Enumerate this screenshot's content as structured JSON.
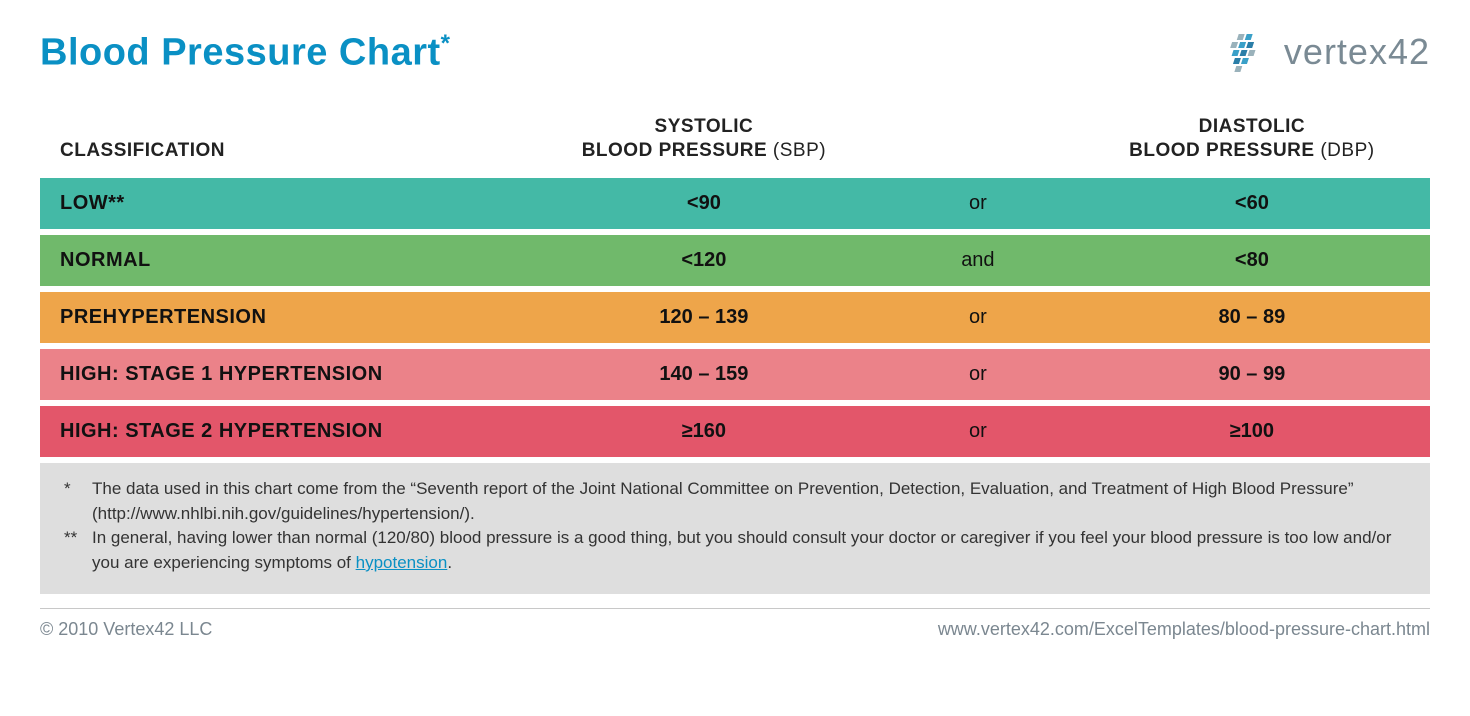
{
  "title": {
    "text": "Blood Pressure Chart",
    "asterisk": "*",
    "color": "#0a90c4"
  },
  "logo": {
    "text": "vertex42",
    "colors": {
      "accent1": "#3aa0c8",
      "accent2": "#2a7ea8",
      "accent3": "#9ab2bb",
      "text": "#7a8a94"
    }
  },
  "table": {
    "columns": {
      "classification": "CLASSIFICATION",
      "sbp_line1": "SYSTOLIC",
      "sbp_line2_bold": "BLOOD PRESSURE",
      "sbp_line2_light": " (SBP)",
      "dbp_line1": "DIASTOLIC",
      "dbp_line2_bold": "BLOOD PRESSURE",
      "dbp_line2_light": " (DBP)"
    },
    "rows": [
      {
        "classification": "LOW**",
        "sbp": "<90",
        "conj": "or",
        "dbp": "<60",
        "bg": "#44b9a6"
      },
      {
        "classification": "NORMAL",
        "sbp": "<120",
        "conj": "and",
        "dbp": "<80",
        "bg": "#70b96b"
      },
      {
        "classification": "PREHYPERTENSION",
        "sbp": "120 – 139",
        "conj": "or",
        "dbp": "80 – 89",
        "bg": "#eea54a"
      },
      {
        "classification": "HIGH: STAGE 1 HYPERTENSION",
        "sbp": "140 – 159",
        "conj": "or",
        "dbp": "90 – 99",
        "bg": "#eb8289"
      },
      {
        "classification": "HIGH: STAGE 2 HYPERTENSION",
        "sbp": "≥160",
        "conj": "or",
        "dbp": "≥100",
        "bg": "#e3566a"
      }
    ]
  },
  "footnotes": {
    "bg": "#dedede",
    "note1_mark": "*",
    "note1": "The data used in this chart come from the “Seventh report of the Joint National Committee on Prevention, Detection, Evaluation, and Treatment of High Blood Pressure” (http://www.nhlbi.nih.gov/guidelines/hypertension/).",
    "note2_mark": "**",
    "note2_pre": "In general, having lower than normal (120/80) blood pressure is a good thing, but you should consult your doctor or caregiver if you feel your blood pressure is too low and/or you are experiencing symptoms of ",
    "note2_link": "hypotension",
    "note2_post": "."
  },
  "footer": {
    "copyright": "© 2010 Vertex42 LLC",
    "url": "www.vertex42.com/ExcelTemplates/blood-pressure-chart.html"
  }
}
